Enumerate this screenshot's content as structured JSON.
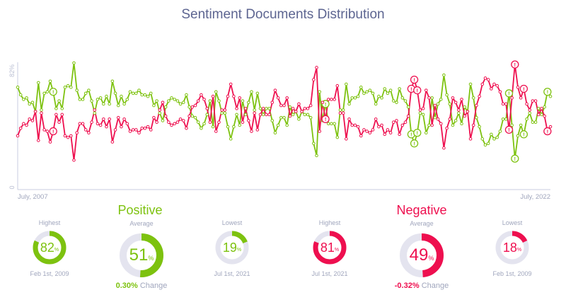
{
  "title": "Sentiment Documents Distribution",
  "colors": {
    "positive": "#7dc20f",
    "negative": "#ee0f4f",
    "track": "#e4e4ef",
    "axis": "#c9cde0",
    "text": "#a0a6bd"
  },
  "chart_data": {
    "type": "line",
    "title": "Sentiment Documents Distribution",
    "x_start_label": "July, 2007",
    "x_end_label": "July, 2022",
    "x_start": "2007-07",
    "x_end": "2022-07",
    "x_interval": "monthly",
    "y_ticks": [
      "0",
      "82%"
    ],
    "ylim": [
      0,
      82
    ],
    "grid": false,
    "marker_icon": "exclamation-icon",
    "marker_indices": [
      12,
      104,
      133,
      134,
      135,
      166,
      168,
      171,
      179
    ],
    "series": [
      {
        "name": "Positive",
        "color": "#7dc20f",
        "values": [
          66,
          61,
          58,
          59,
          55,
          56,
          50,
          69,
          51,
          62,
          63,
          70,
          63,
          52,
          57,
          52,
          66,
          67,
          66,
          82,
          64,
          58,
          58,
          62,
          64,
          57,
          49,
          58,
          59,
          55,
          60,
          55,
          70,
          62,
          54,
          60,
          55,
          58,
          63,
          62,
          62,
          64,
          61,
          61,
          60,
          62,
          54,
          57,
          49,
          44,
          53,
          57,
          59,
          58,
          57,
          55,
          56,
          61,
          53,
          47,
          46,
          43,
          39,
          42,
          48,
          57,
          40,
          63,
          57,
          49,
          49,
          40,
          32,
          40,
          48,
          41,
          57,
          48,
          56,
          63,
          51,
          62,
          52,
          48,
          52,
          52,
          44,
          36,
          41,
          46,
          46,
          41,
          53,
          48,
          50,
          45,
          50,
          48,
          48,
          46,
          29,
          21,
          63,
          44,
          55,
          42,
          42,
          42,
          33,
          51,
          51,
          68,
          55,
          59,
          59,
          60,
          66,
          62,
          63,
          64,
          62,
          55,
          60,
          59,
          65,
          62,
          64,
          57,
          56,
          65,
          59,
          57,
          53,
          35,
          29,
          36,
          49,
          48,
          36,
          41,
          59,
          46,
          55,
          58,
          74,
          61,
          55,
          41,
          44,
          49,
          42,
          53,
          50,
          68,
          59,
          46,
          40,
          32,
          28,
          29,
          35,
          32,
          33,
          37,
          45,
          45,
          62,
          41,
          19,
          34,
          41,
          35,
          45,
          49,
          43,
          43,
          52,
          48,
          53,
          63,
          60
        ]
      },
      {
        "name": "Negative",
        "color": "#ee0f4f",
        "values": [
          34,
          39,
          42,
          41,
          45,
          44,
          50,
          31,
          49,
          38,
          37,
          30,
          37,
          48,
          43,
          48,
          34,
          33,
          34,
          18,
          36,
          42,
          42,
          38,
          36,
          43,
          51,
          42,
          41,
          45,
          40,
          45,
          30,
          38,
          46,
          40,
          45,
          42,
          37,
          38,
          38,
          36,
          39,
          39,
          40,
          38,
          46,
          43,
          51,
          56,
          47,
          43,
          41,
          42,
          43,
          45,
          44,
          39,
          47,
          53,
          54,
          57,
          61,
          58,
          52,
          43,
          60,
          37,
          43,
          51,
          51,
          60,
          68,
          60,
          52,
          59,
          43,
          52,
          44,
          37,
          49,
          38,
          48,
          52,
          48,
          48,
          56,
          64,
          59,
          54,
          54,
          59,
          47,
          52,
          50,
          55,
          50,
          52,
          52,
          54,
          71,
          79,
          37,
          56,
          45,
          58,
          58,
          58,
          67,
          49,
          49,
          32,
          45,
          41,
          41,
          40,
          34,
          38,
          37,
          36,
          38,
          45,
          40,
          41,
          35,
          38,
          36,
          43,
          44,
          35,
          41,
          43,
          47,
          65,
          71,
          64,
          51,
          52,
          64,
          59,
          41,
          54,
          45,
          42,
          26,
          39,
          45,
          59,
          56,
          51,
          58,
          47,
          50,
          32,
          41,
          54,
          60,
          68,
          72,
          71,
          65,
          68,
          67,
          63,
          55,
          55,
          38,
          59,
          81,
          66,
          59,
          65,
          55,
          51,
          57,
          57,
          48,
          52,
          47,
          37,
          40
        ]
      }
    ]
  },
  "summary": {
    "positive": {
      "title": "Positive",
      "highest": {
        "label": "Highest",
        "value": "82",
        "unit": "%",
        "date": "Feb 1st, 2009",
        "fraction": 0.82
      },
      "average": {
        "label": "Average",
        "value": "51",
        "unit": "%",
        "fraction": 0.51,
        "change": "0.30%",
        "change_label": "Change"
      },
      "lowest": {
        "label": "Lowest",
        "value": "19",
        "unit": "%",
        "date": "Jul 1st, 2021",
        "fraction": 0.19
      }
    },
    "negative": {
      "title": "Negative",
      "highest": {
        "label": "Highest",
        "value": "81",
        "unit": "%",
        "date": "Jul 1st, 2021",
        "fraction": 0.81
      },
      "average": {
        "label": "Average",
        "value": "49",
        "unit": "%",
        "fraction": 0.49,
        "change": "-0.32%",
        "change_label": "Change"
      },
      "lowest": {
        "label": "Lowest",
        "value": "18",
        "unit": "%",
        "date": "Feb 1st, 2009",
        "fraction": 0.18
      }
    }
  }
}
